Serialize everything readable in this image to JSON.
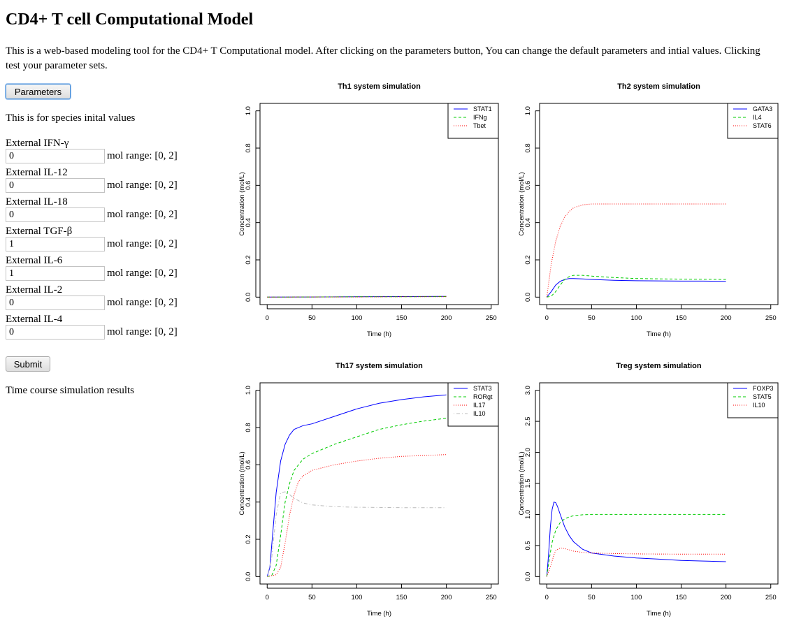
{
  "page": {
    "title": "CD4+ T cell Computational Model",
    "intro": "This is a web-based modeling tool for the CD4+ T Computational model. After clicking on the parameters button, You can change the default parameters and intial values. Clicking",
    "intro_line2": "test your parameter sets."
  },
  "buttons": {
    "parameters": "Parameters",
    "submit": "Submit"
  },
  "species_heading": "This is for species inital values",
  "results_heading": "Time course simulation results",
  "species_fields": [
    {
      "label": "External IFN-γ",
      "value": "0",
      "range": "mol range: [0, 2]"
    },
    {
      "label": "External IL-12",
      "value": "0",
      "range": "mol range: [0, 2]"
    },
    {
      "label": "External IL-18",
      "value": "0",
      "range": "mol range: [0, 2]"
    },
    {
      "label": "External TGF-β",
      "value": "1",
      "range": "mol range: [0, 2]"
    },
    {
      "label": "External IL-6",
      "value": "1",
      "range": "mol range: [0, 2]"
    },
    {
      "label": "External IL-2",
      "value": "0",
      "range": "mol range: [0, 2]"
    },
    {
      "label": "External IL-4",
      "value": "0",
      "range": "mol range: [0, 2]"
    }
  ],
  "chart_data": [
    {
      "type": "line",
      "title": "Th1 system simulation",
      "xlabel": "Time (h)",
      "ylabel": "Concentration (mol/L)",
      "xlim": [
        -8,
        258
      ],
      "ylim": [
        -0.04,
        1.04
      ],
      "xticks": [
        0,
        50,
        100,
        150,
        200,
        250
      ],
      "yticks": [
        0.0,
        0.2,
        0.4,
        0.6,
        0.8,
        1.0
      ],
      "ytick_labels": [
        "0.0",
        "0.2",
        "0.4",
        "0.6",
        "0.8",
        "1.0"
      ],
      "grid": false,
      "legend": "top-right",
      "series": [
        {
          "name": "STAT1",
          "color": "#0000ff",
          "dash": "solid",
          "x": [
            0,
            50,
            100,
            150,
            200
          ],
          "y": [
            0,
            0.001,
            0.002,
            0.003,
            0.004
          ]
        },
        {
          "name": "IFNg",
          "color": "#00cc00",
          "dash": "dashed",
          "x": [
            0,
            50,
            100,
            150,
            200
          ],
          "y": [
            0,
            0.001,
            0.002,
            0.002,
            0.003
          ]
        },
        {
          "name": "Tbet",
          "color": "#ff0000",
          "dash": "dotted",
          "x": [
            0,
            50,
            100,
            150,
            200
          ],
          "y": [
            0,
            0.001,
            0.001,
            0.002,
            0.002
          ]
        }
      ]
    },
    {
      "type": "line",
      "title": "Th2 system simulation",
      "xlabel": "Time (h)",
      "ylabel": "Concentration (mol/L)",
      "xlim": [
        -8,
        258
      ],
      "ylim": [
        -0.04,
        1.04
      ],
      "xticks": [
        0,
        50,
        100,
        150,
        200,
        250
      ],
      "yticks": [
        0.0,
        0.2,
        0.4,
        0.6,
        0.8,
        1.0
      ],
      "ytick_labels": [
        "0.0",
        "0.2",
        "0.4",
        "0.6",
        "0.8",
        "1.0"
      ],
      "grid": false,
      "legend": "top-right",
      "series": [
        {
          "name": "GATA3",
          "color": "#0000ff",
          "dash": "solid",
          "x": [
            0,
            5,
            10,
            15,
            20,
            25,
            30,
            40,
            50,
            75,
            100,
            125,
            150,
            175,
            200
          ],
          "y": [
            0,
            0.03,
            0.065,
            0.085,
            0.095,
            0.1,
            0.1,
            0.098,
            0.095,
            0.09,
            0.088,
            0.087,
            0.086,
            0.086,
            0.085
          ]
        },
        {
          "name": "IL4",
          "color": "#00cc00",
          "dash": "dashed",
          "x": [
            0,
            5,
            10,
            15,
            20,
            25,
            30,
            40,
            50,
            75,
            100,
            125,
            150,
            175,
            200
          ],
          "y": [
            0,
            0.005,
            0.03,
            0.065,
            0.095,
            0.11,
            0.117,
            0.117,
            0.113,
            0.105,
            0.1,
            0.098,
            0.097,
            0.096,
            0.095
          ]
        },
        {
          "name": "STAT6",
          "color": "#ff0000",
          "dash": "dotted",
          "x": [
            0,
            5,
            10,
            15,
            20,
            25,
            30,
            40,
            50,
            75,
            100,
            125,
            150,
            175,
            200
          ],
          "y": [
            0,
            0.18,
            0.3,
            0.38,
            0.43,
            0.46,
            0.48,
            0.495,
            0.5,
            0.5,
            0.5,
            0.5,
            0.5,
            0.5,
            0.5
          ]
        }
      ]
    },
    {
      "type": "line",
      "title": "Th17 system simulation",
      "xlabel": "Time (h)",
      "ylabel": "Concentration (mol/L)",
      "xlim": [
        -8,
        258
      ],
      "ylim": [
        -0.04,
        1.04
      ],
      "xticks": [
        0,
        50,
        100,
        150,
        200,
        250
      ],
      "yticks": [
        0.0,
        0.2,
        0.4,
        0.6,
        0.8,
        1.0
      ],
      "ytick_labels": [
        "0.0",
        "0.2",
        "0.4",
        "0.6",
        "0.8",
        "1.0"
      ],
      "grid": false,
      "legend": "top-right",
      "series": [
        {
          "name": "STAT3",
          "color": "#0000ff",
          "dash": "solid",
          "x": [
            0,
            3,
            6,
            10,
            15,
            20,
            25,
            30,
            40,
            50,
            75,
            100,
            125,
            150,
            175,
            200
          ],
          "y": [
            0,
            0.05,
            0.22,
            0.45,
            0.62,
            0.71,
            0.76,
            0.79,
            0.81,
            0.82,
            0.86,
            0.9,
            0.93,
            0.95,
            0.965,
            0.975
          ]
        },
        {
          "name": "RORgt",
          "color": "#00cc00",
          "dash": "dashed",
          "x": [
            0,
            5,
            10,
            15,
            20,
            25,
            30,
            40,
            50,
            75,
            100,
            125,
            150,
            175,
            200
          ],
          "y": [
            0,
            0.005,
            0.06,
            0.22,
            0.4,
            0.5,
            0.57,
            0.63,
            0.66,
            0.71,
            0.75,
            0.79,
            0.815,
            0.835,
            0.85
          ]
        },
        {
          "name": "IL17",
          "color": "#ff0000",
          "dash": "dotted",
          "x": [
            0,
            10,
            15,
            20,
            25,
            30,
            35,
            40,
            50,
            75,
            100,
            125,
            150,
            175,
            200
          ],
          "y": [
            0,
            0.01,
            0.05,
            0.18,
            0.33,
            0.44,
            0.51,
            0.54,
            0.57,
            0.6,
            0.62,
            0.635,
            0.645,
            0.65,
            0.655
          ]
        },
        {
          "name": "IL10",
          "color": "#bbbbbb",
          "dash": "dotdash",
          "x": [
            0,
            5,
            10,
            15,
            20,
            25,
            30,
            40,
            50,
            75,
            100,
            150,
            200
          ],
          "y": [
            0,
            0.1,
            0.33,
            0.45,
            0.455,
            0.44,
            0.42,
            0.395,
            0.385,
            0.375,
            0.372,
            0.37,
            0.37
          ]
        }
      ]
    },
    {
      "type": "line",
      "title": "Treg system simulation",
      "xlabel": "Time (h)",
      "ylabel": "Concentration (mol/L)",
      "xlim": [
        -8,
        258
      ],
      "ylim": [
        -0.12,
        3.12
      ],
      "xticks": [
        0,
        50,
        100,
        150,
        200,
        250
      ],
      "yticks": [
        0.0,
        0.5,
        1.0,
        1.5,
        2.0,
        2.5,
        3.0
      ],
      "ytick_labels": [
        "0.0",
        "0.5",
        "1.0",
        "1.5",
        "2.0",
        "2.5",
        "3.0"
      ],
      "grid": false,
      "legend": "top-right",
      "series": [
        {
          "name": "FOXP3",
          "color": "#0000ff",
          "dash": "solid",
          "x": [
            0,
            2,
            4,
            6,
            8,
            10,
            12,
            15,
            20,
            25,
            30,
            40,
            50,
            75,
            100,
            125,
            150,
            175,
            200
          ],
          "y": [
            0,
            0.35,
            0.8,
            1.08,
            1.2,
            1.19,
            1.13,
            1.0,
            0.8,
            0.66,
            0.56,
            0.44,
            0.38,
            0.33,
            0.3,
            0.28,
            0.26,
            0.25,
            0.24
          ]
        },
        {
          "name": "STAT5",
          "color": "#00cc00",
          "dash": "dashed",
          "x": [
            0,
            3,
            6,
            10,
            15,
            20,
            25,
            30,
            40,
            50,
            75,
            100,
            150,
            200
          ],
          "y": [
            0,
            0.3,
            0.55,
            0.75,
            0.87,
            0.93,
            0.96,
            0.98,
            0.995,
            1.0,
            1.0,
            1.0,
            1.0,
            1.0
          ]
        },
        {
          "name": "IL10",
          "color": "#ff0000",
          "dash": "dotted",
          "x": [
            0,
            5,
            8,
            10,
            15,
            20,
            25,
            30,
            40,
            50,
            75,
            100,
            150,
            200
          ],
          "y": [
            0,
            0.2,
            0.35,
            0.42,
            0.46,
            0.45,
            0.43,
            0.41,
            0.39,
            0.38,
            0.37,
            0.365,
            0.36,
            0.36
          ]
        }
      ]
    }
  ]
}
